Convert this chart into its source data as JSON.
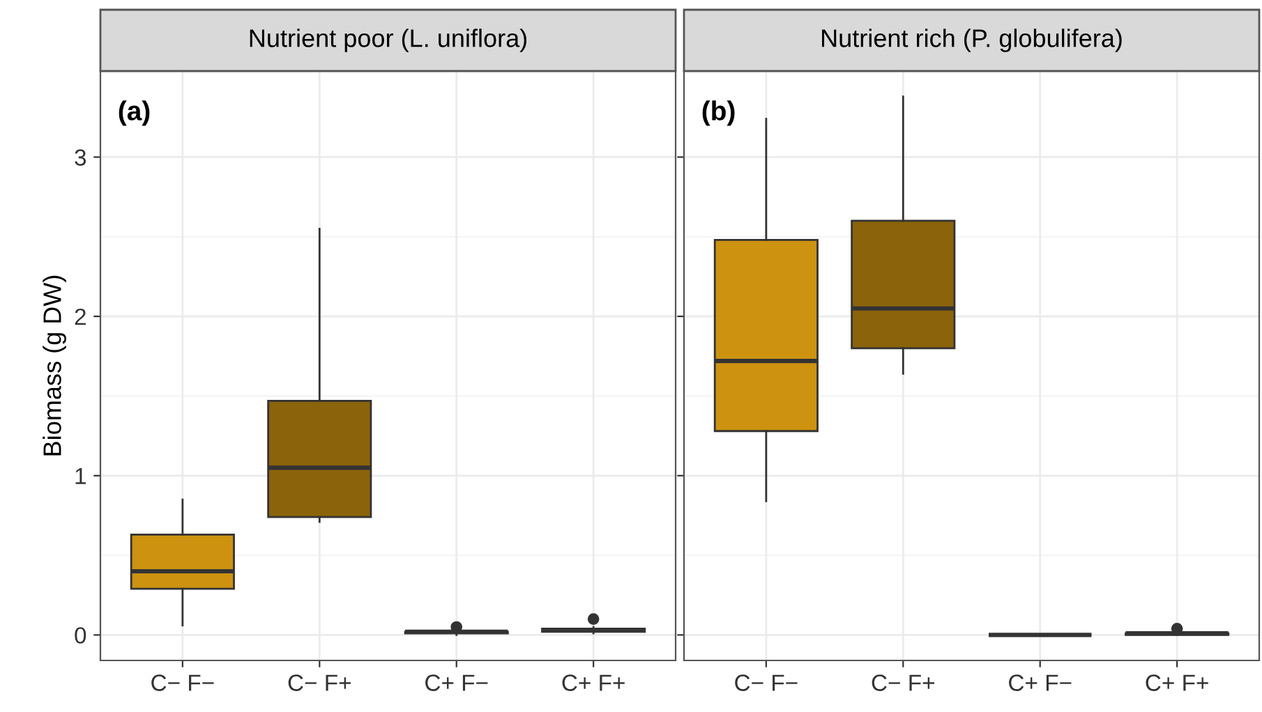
{
  "chart_data": [
    {
      "type": "box",
      "title": "Nutrient poor (L. uniflora)",
      "ylabel": "Biomass (g DW)",
      "annotations": [
        "(a)"
      ],
      "categories": [
        "C− F−",
        "C− F+",
        "C+ F−",
        "C+ F+"
      ],
      "colors": [
        "#cd9210",
        "#8b630a",
        "#cd9210",
        "#8b630a"
      ],
      "boxes": [
        {
          "low": 0.06,
          "q1": 0.29,
          "median": 0.4,
          "q3": 0.63,
          "high": 0.85
        },
        {
          "low": 0.71,
          "q1": 0.74,
          "median": 1.05,
          "q3": 1.47,
          "high": 2.55
        },
        {
          "low": 0.0,
          "q1": 0.01,
          "median": 0.02,
          "q3": 0.02,
          "high": 0.03,
          "outliers": [
            0.05
          ]
        },
        {
          "low": 0.01,
          "q1": 0.02,
          "median": 0.03,
          "q3": 0.04,
          "high": 0.05,
          "outliers": [
            0.1
          ]
        }
      ],
      "ylim": [
        -0.16,
        3.54
      ],
      "yticks": [
        0,
        1,
        2,
        3
      ],
      "grid": true
    },
    {
      "type": "box",
      "title": "Nutrient rich (P. globulifera)",
      "annotations": [
        "(b)"
      ],
      "categories": [
        "C− F−",
        "C− F+",
        "C+ F−",
        "C+ F+"
      ],
      "colors": [
        "#cd9210",
        "#8b630a",
        "#333333",
        "#8b630a"
      ],
      "boxes": [
        {
          "low": 0.84,
          "q1": 1.28,
          "median": 1.72,
          "q3": 2.48,
          "high": 3.24
        },
        {
          "low": 1.64,
          "q1": 1.8,
          "median": 2.05,
          "q3": 2.6,
          "high": 3.38
        },
        {
          "low": 0.0,
          "q1": 0.0,
          "median": 0.0,
          "q3": 0.0,
          "high": 0.0
        },
        {
          "low": 0.0,
          "q1": 0.0,
          "median": 0.01,
          "q3": 0.01,
          "high": 0.02,
          "outliers": [
            0.04
          ]
        }
      ],
      "ylim": [
        -0.16,
        3.54
      ],
      "yticks": [
        0,
        1,
        2,
        3
      ],
      "grid": true,
      "tick_labels": "x"
    }
  ]
}
